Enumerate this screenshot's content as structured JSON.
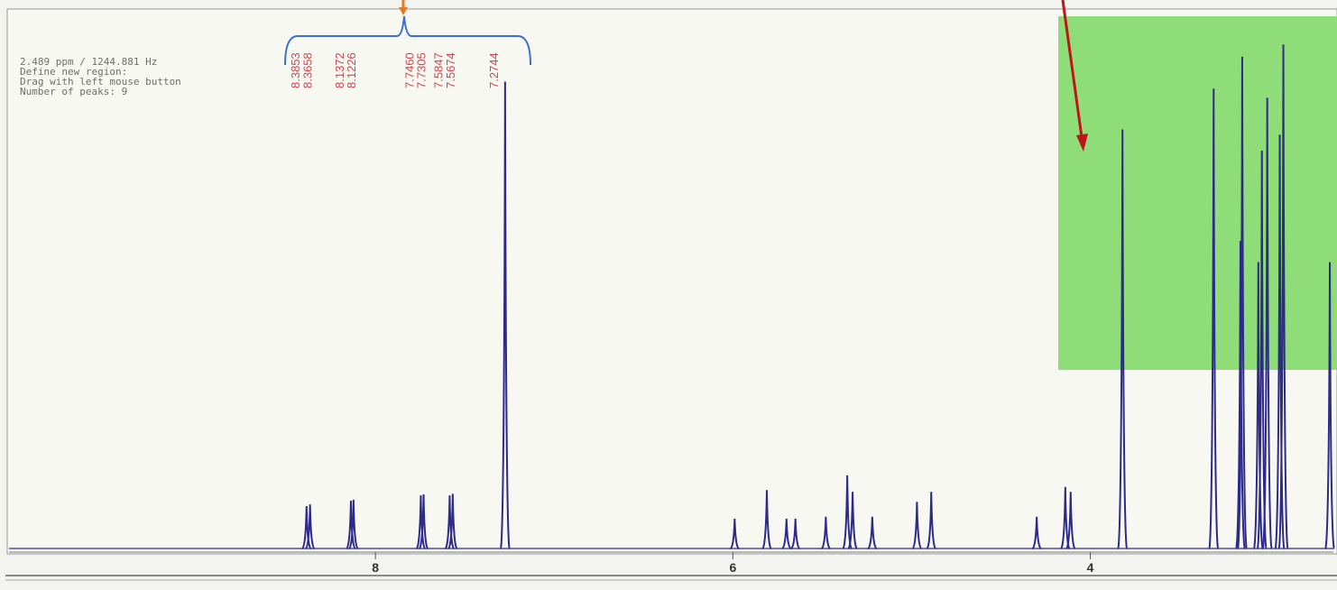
{
  "chart_data": {
    "type": "spectrum",
    "info": [
      "2.489 ppm / 1244.881 Hz",
      "Define new region:",
      "Drag with left mouse button",
      "Number of peaks: 9"
    ],
    "x": [
      8.3853,
      8.3658,
      8.1372,
      8.1226,
      7.746,
      7.7305,
      7.5847,
      7.5674,
      7.2744,
      5.99,
      5.81,
      5.7,
      5.65,
      5.48,
      5.36,
      5.33,
      5.22,
      4.97,
      4.89,
      4.3,
      4.14,
      4.11,
      3.82,
      3.31,
      3.16,
      3.15,
      3.06,
      3.04,
      3.01,
      2.94,
      2.92,
      2.66
    ],
    "x_labels": [
      "8.3853",
      "8.3658",
      "8.1372",
      "8.1226",
      "7.7460",
      "7.7305",
      "7.5847",
      "7.5674",
      "7.2744",
      null,
      null,
      null,
      null,
      null,
      null,
      null,
      null,
      null,
      null,
      null,
      null,
      null,
      null,
      null,
      null,
      null,
      null,
      null,
      null,
      null,
      null,
      null
    ],
    "values": [
      8,
      8.3,
      9,
      9.2,
      10,
      10.2,
      10,
      10.3,
      88,
      5.6,
      11,
      5.6,
      5.6,
      6,
      13.8,
      10.7,
      6,
      8.8,
      10.7,
      6,
      11.6,
      10.7,
      79,
      86.7,
      58,
      92.7,
      54,
      75,
      85,
      78,
      95,
      54
    ],
    "color": "#2e2a8a",
    "xlim": [
      10.05,
      2.64
    ],
    "ylim": [
      0,
      100
    ],
    "xticks": [
      8,
      6,
      4
    ]
  }
}
